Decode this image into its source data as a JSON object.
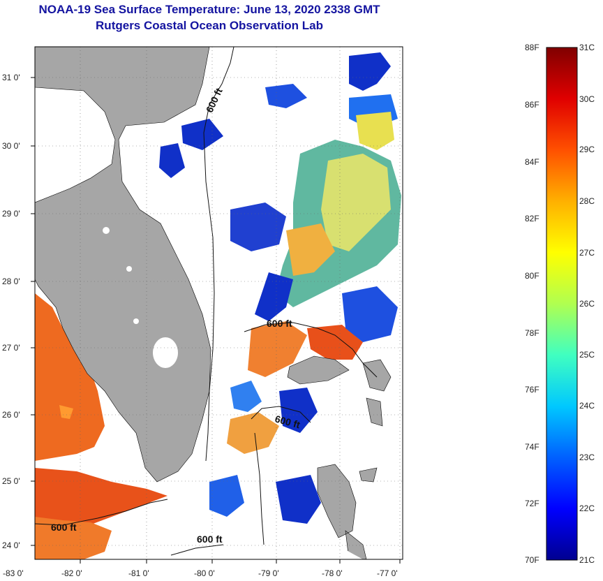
{
  "header": {
    "title": "NOAA-19 Sea Surface Temperature:  June 13, 2020 2338 GMT",
    "subtitle": "Rutgers Coastal Ocean Observation Lab"
  },
  "map": {
    "lat_ticks": [
      "31 0'",
      "30 0'",
      "29 0'",
      "28 0'",
      "27 0'",
      "26 0'",
      "25 0'",
      "24 0'"
    ],
    "lon_ticks": [
      "-83 0'",
      "-82 0'",
      "-81 0'",
      "-80 0'",
      "-79 0'",
      "-78 0'",
      "-77 0'"
    ],
    "contour_labels": [
      "600 ft",
      "600 ft",
      "600 ft",
      "600 ft",
      "600 ft"
    ],
    "colors": {
      "land": "#a6a6a6",
      "lake": "#ffffff",
      "frame": "#000000"
    }
  },
  "colorbar": {
    "f_labels": [
      "88F",
      "86F",
      "84F",
      "82F",
      "80F",
      "78F",
      "76F",
      "74F",
      "72F",
      "70F"
    ],
    "c_labels": [
      "31C",
      "30C",
      "29C",
      "28C",
      "27C",
      "26C",
      "25C",
      "24C",
      "23C",
      "22C",
      "21C"
    ],
    "colors": [
      "#000090",
      "#0000ff",
      "#0060ff",
      "#00c8ff",
      "#40ffc0",
      "#b0ff50",
      "#ffff00",
      "#ffb000",
      "#ff5000",
      "#e00000",
      "#800000"
    ]
  }
}
